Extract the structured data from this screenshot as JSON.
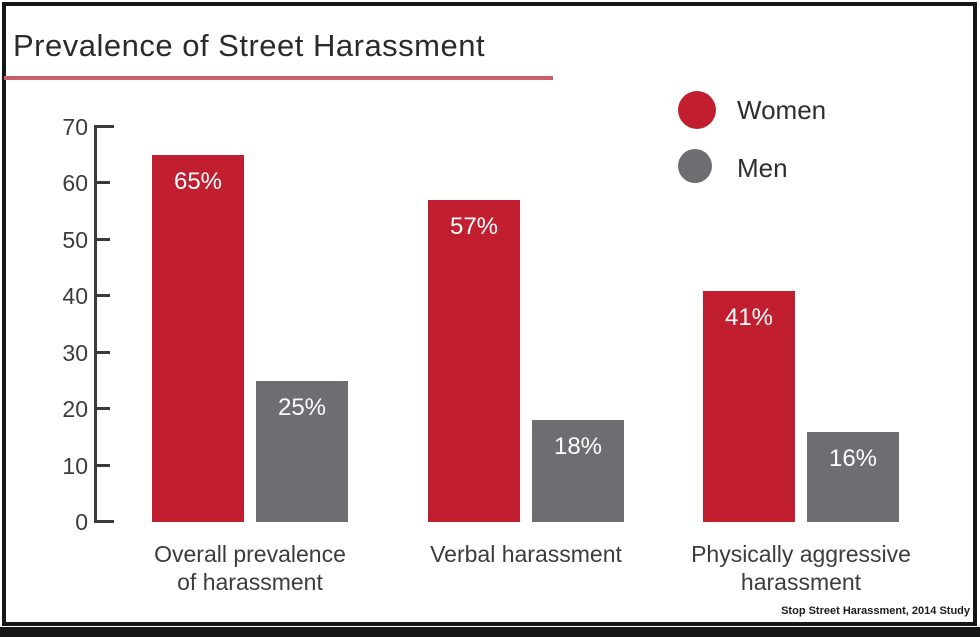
{
  "chart_data": {
    "type": "bar",
    "title": "Prevalence of Street Harassment",
    "source_note": "Stop Street Harassment, 2014 Study",
    "categories": [
      "Overall prevalence\nof harassment",
      "Verbal harassment",
      "Physically aggressive\nharassment"
    ],
    "series": [
      {
        "name": "Women",
        "values": [
          65,
          57,
          41
        ],
        "labels": [
          "65%",
          "57%",
          "41%"
        ],
        "color": "#c11f30"
      },
      {
        "name": "Men",
        "values": [
          25,
          18,
          16
        ],
        "labels": [
          "25%",
          "18%",
          "16%"
        ],
        "color": "#6e6e72"
      }
    ],
    "xlabel": "",
    "ylabel": "",
    "ylim": [
      0,
      70
    ],
    "yticks": [
      0,
      10,
      20,
      30,
      40,
      50,
      60,
      70
    ],
    "grid": false,
    "legend_position": "top-right",
    "value_label_style": "inside-top-white",
    "colors": {
      "women": "#c11f30",
      "men": "#6e6e72",
      "title_underline": "#c9606b",
      "axis": "#3a3a3a",
      "text": "#2e2e2e",
      "value_label": "#ffffff",
      "frame_border": "#161616"
    }
  }
}
